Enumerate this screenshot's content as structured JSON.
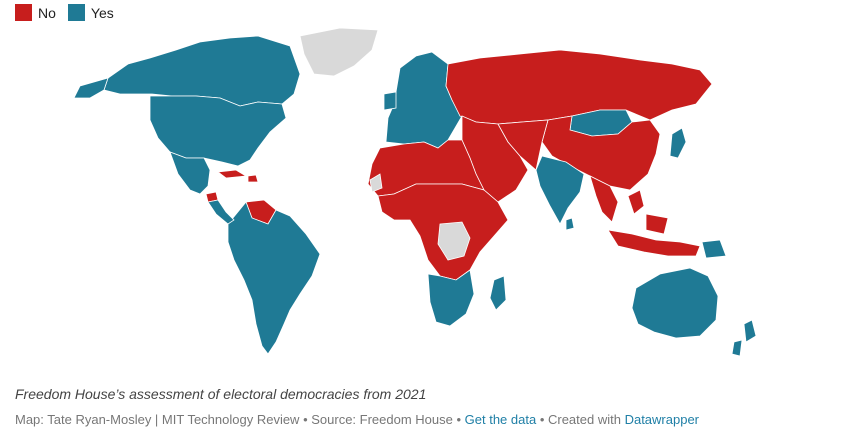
{
  "legend": [
    {
      "label": "No",
      "color": "#c71e1d"
    },
    {
      "label": "Yes",
      "color": "#1f7a95"
    }
  ],
  "colors": {
    "no_data": "#d9d9d9",
    "background": "#ffffff",
    "border": "#ffffff"
  },
  "caption": "Freedom House’s assessment of electoral democracies from 2021",
  "footer": {
    "credit": "Map: Tate Ryan-Mosley | MIT Technology Review",
    "sep1": " • ",
    "source": "Source: Freedom House",
    "sep2": " • ",
    "get_data": "Get the data",
    "sep3": " • ",
    "created_with": "Created with ",
    "tool": "Datawrapper"
  },
  "regions": [
    {
      "name": "Canada",
      "status": "yes"
    },
    {
      "name": "United States",
      "status": "yes"
    },
    {
      "name": "Mexico",
      "status": "yes"
    },
    {
      "name": "Cuba",
      "status": "no"
    },
    {
      "name": "Haiti",
      "status": "no"
    },
    {
      "name": "Nicaragua",
      "status": "no"
    },
    {
      "name": "Venezuela",
      "status": "no"
    },
    {
      "name": "South America",
      "status": "yes"
    },
    {
      "name": "Greenland",
      "status": "no_data"
    },
    {
      "name": "Western Europe",
      "status": "yes"
    },
    {
      "name": "Russia",
      "status": "no"
    },
    {
      "name": "Mongolia",
      "status": "yes"
    },
    {
      "name": "China",
      "status": "no"
    },
    {
      "name": "Japan",
      "status": "yes"
    },
    {
      "name": "India",
      "status": "yes"
    },
    {
      "name": "Sri Lanka",
      "status": "yes"
    },
    {
      "name": "Middle East",
      "status": "no"
    },
    {
      "name": "Central Asia",
      "status": "no"
    },
    {
      "name": "Southeast Asia",
      "status": "no"
    },
    {
      "name": "Indonesia",
      "status": "no"
    },
    {
      "name": "Papua New Guinea",
      "status": "yes"
    },
    {
      "name": "North Africa",
      "status": "no"
    },
    {
      "name": "Western Sahara",
      "status": "no_data"
    },
    {
      "name": "Central Africa",
      "status": "no"
    },
    {
      "name": "DR Congo",
      "status": "no_data"
    },
    {
      "name": "Southern Africa",
      "status": "yes"
    },
    {
      "name": "Madagascar",
      "status": "yes"
    },
    {
      "name": "Australia",
      "status": "yes"
    },
    {
      "name": "New Zealand",
      "status": "yes"
    }
  ]
}
